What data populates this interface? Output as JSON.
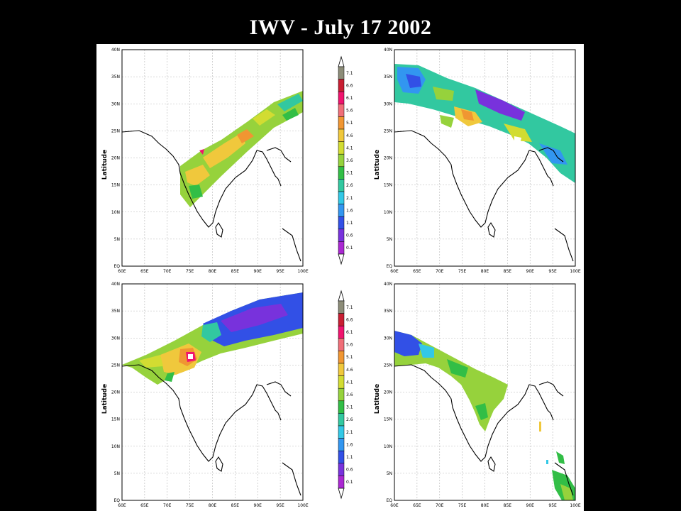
{
  "title": "IWV - July 17 2002",
  "axes": {
    "ylabel": "Latitude",
    "lat_ticks": [
      "40N",
      "35N",
      "30N",
      "25N",
      "20N",
      "15N",
      "10N",
      "5N",
      "EQ"
    ],
    "lon_ticks": [
      "60E",
      "65E",
      "70E",
      "75E",
      "80E",
      "85E",
      "90E",
      "95E",
      "100E"
    ]
  },
  "colorbar": {
    "labels": [
      "7.1",
      "6.6",
      "6.1",
      "5.6",
      "5.1",
      "4.6",
      "4.1",
      "3.6",
      "3.1",
      "2.6",
      "2.1",
      "1.6",
      "1.1",
      "0.6",
      "0.1"
    ],
    "colors": [
      "#8c8c78",
      "#c81e32",
      "#f0146e",
      "#f06e78",
      "#f09632",
      "#f0c83c",
      "#d2dc32",
      "#96d23c",
      "#32be46",
      "#32c8a0",
      "#32c8e6",
      "#3296f0",
      "#3250e6",
      "#7832dc",
      "#aa28d2"
    ]
  },
  "panels": [
    {
      "id": "top-left"
    },
    {
      "id": "top-right"
    },
    {
      "id": "bottom-left"
    },
    {
      "id": "bottom-right"
    }
  ]
}
